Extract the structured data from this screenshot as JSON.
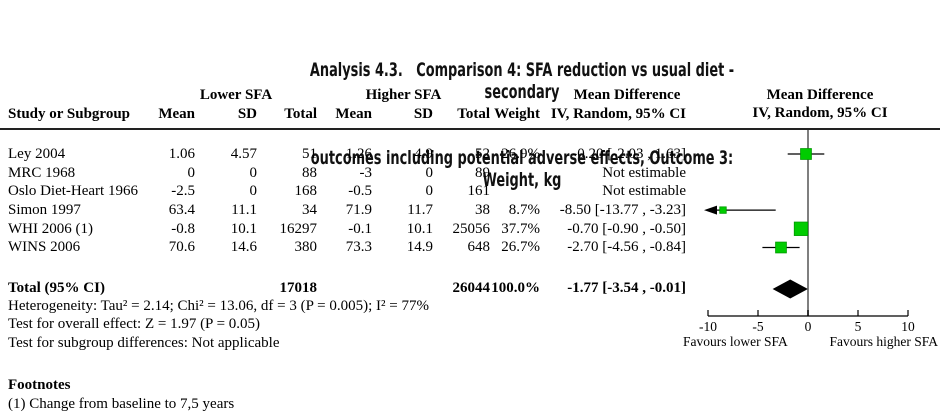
{
  "title": {
    "line1": "Analysis 4.3.   Comparison 4: SFA reduction vs usual diet - secondary",
    "line2": "outcomes including potential adverse effects, Outcome 3: Weight, kg"
  },
  "table": {
    "group_headers": {
      "lower": "Lower SFA",
      "higher": "Higher SFA",
      "effect": "Mean Difference"
    },
    "col_headers": {
      "study": "Study or Subgroup",
      "mean": "Mean",
      "sd": "SD",
      "total": "Total",
      "weight": "Weight",
      "ci": "IV, Random, 95% CI"
    },
    "plot_header": {
      "line1": "Mean Difference",
      "line2": "IV, Random, 95% CI"
    },
    "rows": [
      {
        "study": "Ley 2004",
        "mean1": "1.06",
        "sd1": "4.57",
        "total1": "51",
        "mean2": "1.26",
        "sd2": "4.9",
        "total2": "52",
        "weight": "26.9%",
        "ci": "-0.20 [-2.03 , 1.63]"
      },
      {
        "study": "MRC 1968",
        "mean1": "0",
        "sd1": "0",
        "total1": "88",
        "mean2": "-3",
        "sd2": "0",
        "total2": "89",
        "weight": "",
        "ci": "Not estimable"
      },
      {
        "study": "Oslo Diet-Heart 1966",
        "mean1": "-2.5",
        "sd1": "0",
        "total1": "168",
        "mean2": "-0.5",
        "sd2": "0",
        "total2": "161",
        "weight": "",
        "ci": "Not estimable"
      },
      {
        "study": "Simon 1997",
        "mean1": "63.4",
        "sd1": "11.1",
        "total1": "34",
        "mean2": "71.9",
        "sd2": "11.7",
        "total2": "38",
        "weight": "8.7%",
        "ci": "-8.50 [-13.77 , -3.23]"
      },
      {
        "study": "WHI 2006 (1)",
        "mean1": "-0.8",
        "sd1": "10.1",
        "total1": "16297",
        "mean2": "-0.1",
        "sd2": "10.1",
        "total2": "25056",
        "weight": "37.7%",
        "ci": "-0.70 [-0.90 , -0.50]"
      },
      {
        "study": "WINS 2006",
        "mean1": "70.6",
        "sd1": "14.6",
        "total1": "380",
        "mean2": "73.3",
        "sd2": "14.9",
        "total2": "648",
        "weight": "26.7%",
        "ci": "-2.70 [-4.56 , -0.84]"
      }
    ],
    "total_row": {
      "label": "Total (95% CI)",
      "total1": "17018",
      "total2": "26044",
      "weight": "100.0%",
      "ci": "-1.77 [-3.54 , -0.01]"
    }
  },
  "stats": {
    "heterogeneity": "Heterogeneity: Tau² = 2.14; Chi² = 13.06, df = 3 (P = 0.005); I² = 77%",
    "overall_effect": "Test for overall effect: Z = 1.97 (P = 0.05)",
    "subgroup": "Test for subgroup differences: Not applicable"
  },
  "footnotes": {
    "heading": "Footnotes",
    "item1": "(1) Change from baseline to 7,5 years"
  },
  "colors": {
    "marker_green": "#00cc00",
    "marker_green_border": "#009900",
    "zero_line_gray": "#7f7f7f",
    "line_black": "#000000"
  },
  "chart_data": {
    "type": "forest",
    "effect_measure": "Mean Difference (IV, Random, 95% CI)",
    "xlim": [
      -10,
      10
    ],
    "ticks": [
      -10,
      -5,
      0,
      5,
      10
    ],
    "x_left_label": "Favours lower SFA",
    "x_right_label": "Favours higher SFA",
    "studies": [
      {
        "name": "Ley 2004",
        "md": -0.2,
        "ci_low": -2.03,
        "ci_high": 1.63,
        "weight_pct": 26.9
      },
      {
        "name": "MRC 1968",
        "md": null,
        "ci_low": null,
        "ci_high": null,
        "weight_pct": null,
        "note": "Not estimable"
      },
      {
        "name": "Oslo Diet-Heart 1966",
        "md": null,
        "ci_low": null,
        "ci_high": null,
        "weight_pct": null,
        "note": "Not estimable"
      },
      {
        "name": "Simon 1997",
        "md": -8.5,
        "ci_low": -13.77,
        "ci_high": -3.23,
        "weight_pct": 8.7
      },
      {
        "name": "WHI 2006 (1)",
        "md": -0.7,
        "ci_low": -0.9,
        "ci_high": -0.5,
        "weight_pct": 37.7
      },
      {
        "name": "WINS 2006",
        "md": -2.7,
        "ci_low": -4.56,
        "ci_high": -0.84,
        "weight_pct": 26.7
      }
    ],
    "total": {
      "name": "Total (95% CI)",
      "md": -1.77,
      "ci_low": -3.54,
      "ci_high": -0.01,
      "weight_pct": 100.0
    }
  }
}
